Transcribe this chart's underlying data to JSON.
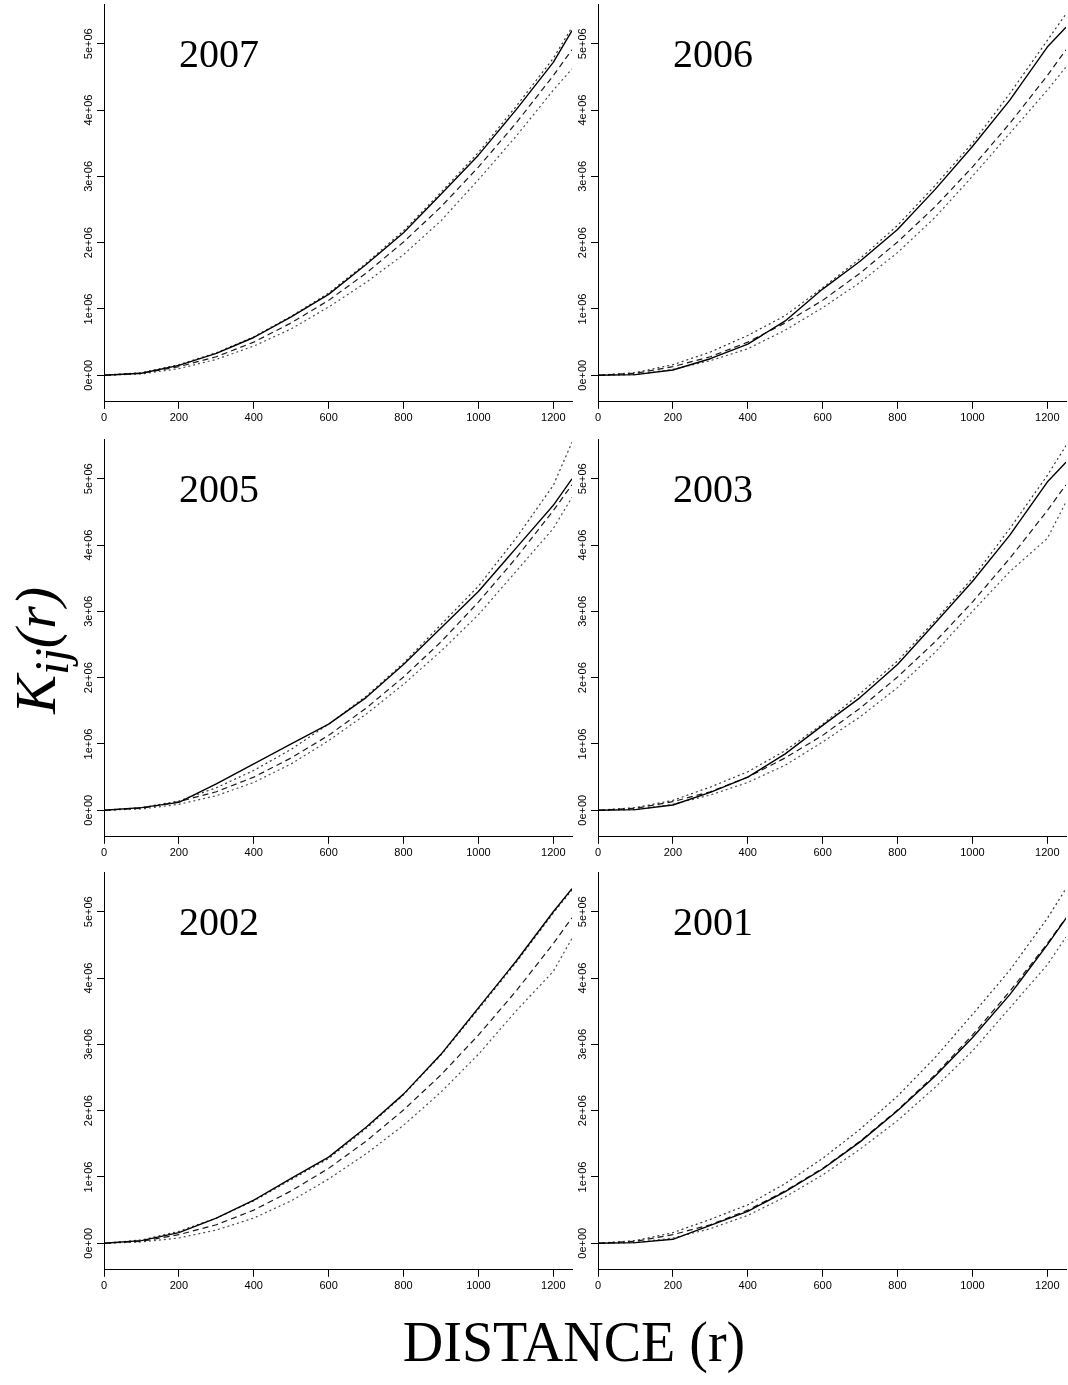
{
  "chart_data": [
    {
      "type": "line",
      "title": "2007",
      "marker": "none",
      "x": [
        0,
        100,
        200,
        300,
        400,
        500,
        600,
        700,
        800,
        900,
        1000,
        1100,
        1200,
        1250
      ],
      "xlim": [
        0,
        1250
      ],
      "xticks": [
        0,
        200,
        400,
        600,
        800,
        1000,
        1200
      ],
      "ylim": [
        -400000,
        5600000
      ],
      "yticks": [
        {
          "value": 0,
          "label": "0e+00"
        },
        {
          "value": 1000000,
          "label": "1e+06"
        },
        {
          "value": 2000000,
          "label": "2e+06"
        },
        {
          "value": 3000000,
          "label": "3e+06"
        },
        {
          "value": 4000000,
          "label": "4e+06"
        },
        {
          "value": 5000000,
          "label": "5e+06"
        }
      ],
      "series": [
        {
          "color": "#000000",
          "line_style": "solid",
          "values": [
            0,
            30000,
            150000,
            330000,
            570000,
            880000,
            1220000,
            1670000,
            2150000,
            2730000,
            3320000,
            4000000,
            4720000,
            5200000
          ]
        },
        {
          "color": "#1a1a1a",
          "line_style": "dashed",
          "values": [
            0,
            30000,
            130000,
            280000,
            500000,
            790000,
            1130000,
            1540000,
            2010000,
            2540000,
            3140000,
            3800000,
            4520000,
            4910000
          ]
        },
        {
          "color": "#333333",
          "line_style": "dotted",
          "values": [
            0,
            40000,
            160000,
            340000,
            580000,
            890000,
            1240000,
            1690000,
            2180000,
            2760000,
            3360000,
            4050000,
            4780000,
            5250000
          ]
        },
        {
          "color": "#4d4d4d",
          "line_style": "dotted",
          "values": [
            0,
            20000,
            100000,
            240000,
            440000,
            700000,
            1030000,
            1400000,
            1820000,
            2330000,
            2950000,
            3600000,
            4300000,
            4620000
          ]
        }
      ]
    },
    {
      "type": "line",
      "title": "2006",
      "marker": "none",
      "x": [
        0,
        100,
        200,
        300,
        400,
        500,
        600,
        700,
        800,
        900,
        1000,
        1100,
        1200,
        1250
      ],
      "xlim": [
        0,
        1250
      ],
      "xticks": [
        0,
        200,
        400,
        600,
        800,
        1000,
        1200
      ],
      "ylim": [
        -400000,
        5600000
      ],
      "yticks": [
        {
          "value": 0,
          "label": "0e+00"
        },
        {
          "value": 1000000,
          "label": "1e+06"
        },
        {
          "value": 2000000,
          "label": "2e+06"
        },
        {
          "value": 3000000,
          "label": "3e+06"
        },
        {
          "value": 4000000,
          "label": "4e+06"
        },
        {
          "value": 5000000,
          "label": "5e+06"
        }
      ],
      "series": [
        {
          "color": "#000000",
          "line_style": "solid",
          "values": [
            0,
            10000,
            80000,
            250000,
            470000,
            820000,
            1300000,
            1720000,
            2200000,
            2800000,
            3450000,
            4150000,
            4950000,
            5250000
          ]
        },
        {
          "color": "#1a1a1a",
          "line_style": "dashed",
          "values": [
            0,
            30000,
            130000,
            280000,
            500000,
            790000,
            1130000,
            1540000,
            2010000,
            2540000,
            3140000,
            3800000,
            4520000,
            4910000
          ]
        },
        {
          "color": "#333333",
          "line_style": "dotted",
          "values": [
            0,
            40000,
            160000,
            350000,
            600000,
            900000,
            1320000,
            1760000,
            2260000,
            2860000,
            3500000,
            4250000,
            5050000,
            5450000
          ]
        },
        {
          "color": "#4d4d4d",
          "line_style": "dotted",
          "values": [
            0,
            10000,
            90000,
            220000,
            400000,
            680000,
            1020000,
            1400000,
            1850000,
            2380000,
            3000000,
            3650000,
            4300000,
            4650000
          ]
        }
      ]
    },
    {
      "type": "line",
      "title": "2005",
      "ylabel": "K$_{ij}$(r)",
      "marker": "none",
      "x": [
        0,
        100,
        200,
        300,
        400,
        500,
        600,
        700,
        800,
        900,
        1000,
        1100,
        1200,
        1250
      ],
      "xlim": [
        0,
        1250
      ],
      "xticks": [
        0,
        200,
        400,
        600,
        800,
        1000,
        1200
      ],
      "ylim": [
        -400000,
        5600000
      ],
      "yticks": [
        {
          "value": 0,
          "label": "0e+00"
        },
        {
          "value": 1000000,
          "label": "1e+06"
        },
        {
          "value": 2000000,
          "label": "2e+06"
        },
        {
          "value": 3000000,
          "label": "3e+06"
        },
        {
          "value": 4000000,
          "label": "4e+06"
        },
        {
          "value": 5000000,
          "label": "5e+06"
        }
      ],
      "series": [
        {
          "color": "#000000",
          "line_style": "solid",
          "values": [
            0,
            40000,
            120000,
            400000,
            700000,
            1000000,
            1300000,
            1700000,
            2200000,
            2750000,
            3300000,
            3950000,
            4600000,
            5000000
          ]
        },
        {
          "color": "#1a1a1a",
          "line_style": "dashed",
          "values": [
            0,
            30000,
            130000,
            280000,
            500000,
            790000,
            1130000,
            1540000,
            2010000,
            2540000,
            3140000,
            3800000,
            4520000,
            4910000
          ]
        },
        {
          "color": "#333333",
          "line_style": "dotted",
          "values": [
            0,
            40000,
            140000,
            340000,
            600000,
            920000,
            1300000,
            1720000,
            2220000,
            2800000,
            3380000,
            4100000,
            4900000,
            5550000
          ]
        },
        {
          "color": "#4d4d4d",
          "line_style": "dotted",
          "values": [
            0,
            20000,
            90000,
            220000,
            420000,
            700000,
            1050000,
            1450000,
            1900000,
            2400000,
            2950000,
            3600000,
            4250000,
            4720000
          ]
        }
      ]
    },
    {
      "type": "line",
      "title": "2003",
      "marker": "none",
      "x": [
        0,
        100,
        200,
        300,
        400,
        500,
        600,
        700,
        800,
        900,
        1000,
        1100,
        1200,
        1250
      ],
      "xlim": [
        0,
        1250
      ],
      "xticks": [
        0,
        200,
        400,
        600,
        800,
        1000,
        1200
      ],
      "ylim": [
        -400000,
        5600000
      ],
      "yticks": [
        {
          "value": 0,
          "label": "0e+00"
        },
        {
          "value": 1000000,
          "label": "1e+06"
        },
        {
          "value": 2000000,
          "label": "2e+06"
        },
        {
          "value": 3000000,
          "label": "3e+06"
        },
        {
          "value": 4000000,
          "label": "4e+06"
        },
        {
          "value": 5000000,
          "label": "5e+06"
        }
      ],
      "series": [
        {
          "color": "#000000",
          "line_style": "solid",
          "values": [
            0,
            10000,
            80000,
            270000,
            500000,
            850000,
            1280000,
            1700000,
            2200000,
            2820000,
            3450000,
            4150000,
            4950000,
            5250000
          ]
        },
        {
          "color": "#1a1a1a",
          "line_style": "dashed",
          "values": [
            0,
            30000,
            130000,
            280000,
            500000,
            790000,
            1130000,
            1540000,
            2010000,
            2540000,
            3140000,
            3800000,
            4520000,
            4910000
          ]
        },
        {
          "color": "#333333",
          "line_style": "dotted",
          "values": [
            0,
            40000,
            150000,
            350000,
            580000,
            900000,
            1300000,
            1760000,
            2250000,
            2860000,
            3500000,
            4250000,
            5050000,
            5500000
          ]
        },
        {
          "color": "#4d4d4d",
          "line_style": "dotted",
          "values": [
            0,
            10000,
            90000,
            230000,
            420000,
            680000,
            1030000,
            1410000,
            1850000,
            2380000,
            3000000,
            3600000,
            4100000,
            4650000
          ]
        }
      ]
    },
    {
      "type": "line",
      "title": "2002",
      "xlabel": "DISTANCE (r)",
      "marker": "none",
      "x": [
        0,
        100,
        200,
        300,
        400,
        500,
        600,
        700,
        800,
        900,
        1000,
        1100,
        1200,
        1250
      ],
      "xlim": [
        0,
        1250
      ],
      "xticks": [
        0,
        200,
        400,
        600,
        800,
        1000,
        1200
      ],
      "ylim": [
        -400000,
        5600000
      ],
      "yticks": [
        {
          "value": 0,
          "label": "0e+00"
        },
        {
          "value": 1000000,
          "label": "1e+06"
        },
        {
          "value": 2000000,
          "label": "2e+06"
        },
        {
          "value": 3000000,
          "label": "3e+06"
        },
        {
          "value": 4000000,
          "label": "4e+06"
        },
        {
          "value": 5000000,
          "label": "5e+06"
        }
      ],
      "series": [
        {
          "color": "#000000",
          "line_style": "solid",
          "values": [
            0,
            40000,
            160000,
            380000,
            650000,
            980000,
            1300000,
            1750000,
            2250000,
            2850000,
            3550000,
            4250000,
            5000000,
            5350000
          ]
        },
        {
          "color": "#1a1a1a",
          "line_style": "dashed",
          "values": [
            0,
            30000,
            130000,
            280000,
            500000,
            790000,
            1130000,
            1540000,
            2010000,
            2540000,
            3140000,
            3800000,
            4520000,
            4910000
          ]
        },
        {
          "color": "#333333",
          "line_style": "dotted",
          "values": [
            0,
            50000,
            180000,
            380000,
            640000,
            960000,
            1280000,
            1730000,
            2240000,
            2840000,
            3530000,
            4230000,
            4980000,
            5330000
          ]
        },
        {
          "color": "#4d4d4d",
          "line_style": "dotted",
          "values": [
            0,
            20000,
            80000,
            200000,
            380000,
            640000,
            970000,
            1350000,
            1780000,
            2280000,
            2850000,
            3500000,
            4100000,
            4600000
          ]
        }
      ]
    },
    {
      "type": "line",
      "title": "2001",
      "marker": "none",
      "x": [
        0,
        100,
        200,
        300,
        400,
        500,
        600,
        700,
        800,
        900,
        1000,
        1100,
        1200,
        1250
      ],
      "xlim": [
        0,
        1250
      ],
      "xticks": [
        0,
        200,
        400,
        600,
        800,
        1000,
        1200
      ],
      "ylim": [
        -400000,
        5600000
      ],
      "yticks": [
        {
          "value": 0,
          "label": "0e+00"
        },
        {
          "value": 1000000,
          "label": "1e+06"
        },
        {
          "value": 2000000,
          "label": "2e+06"
        },
        {
          "value": 3000000,
          "label": "3e+06"
        },
        {
          "value": 4000000,
          "label": "4e+06"
        },
        {
          "value": 5000000,
          "label": "5e+06"
        }
      ],
      "series": [
        {
          "color": "#000000",
          "line_style": "solid",
          "values": [
            0,
            10000,
            60000,
            270000,
            480000,
            780000,
            1120000,
            1530000,
            2000000,
            2520000,
            3100000,
            3750000,
            4500000,
            4900000
          ]
        },
        {
          "color": "#1a1a1a",
          "line_style": "dashed",
          "values": [
            0,
            30000,
            130000,
            280000,
            500000,
            790000,
            1130000,
            1540000,
            2010000,
            2540000,
            3140000,
            3800000,
            4520000,
            4910000
          ]
        },
        {
          "color": "#333333",
          "line_style": "dotted",
          "values": [
            0,
            40000,
            160000,
            360000,
            580000,
            900000,
            1280000,
            1720000,
            2220000,
            2800000,
            3450000,
            4120000,
            4900000,
            5350000
          ]
        },
        {
          "color": "#4d4d4d",
          "line_style": "dotted",
          "values": [
            0,
            10000,
            80000,
            220000,
            420000,
            700000,
            1030000,
            1420000,
            1850000,
            2350000,
            2900000,
            3550000,
            4200000,
            4620000
          ]
        }
      ]
    }
  ]
}
